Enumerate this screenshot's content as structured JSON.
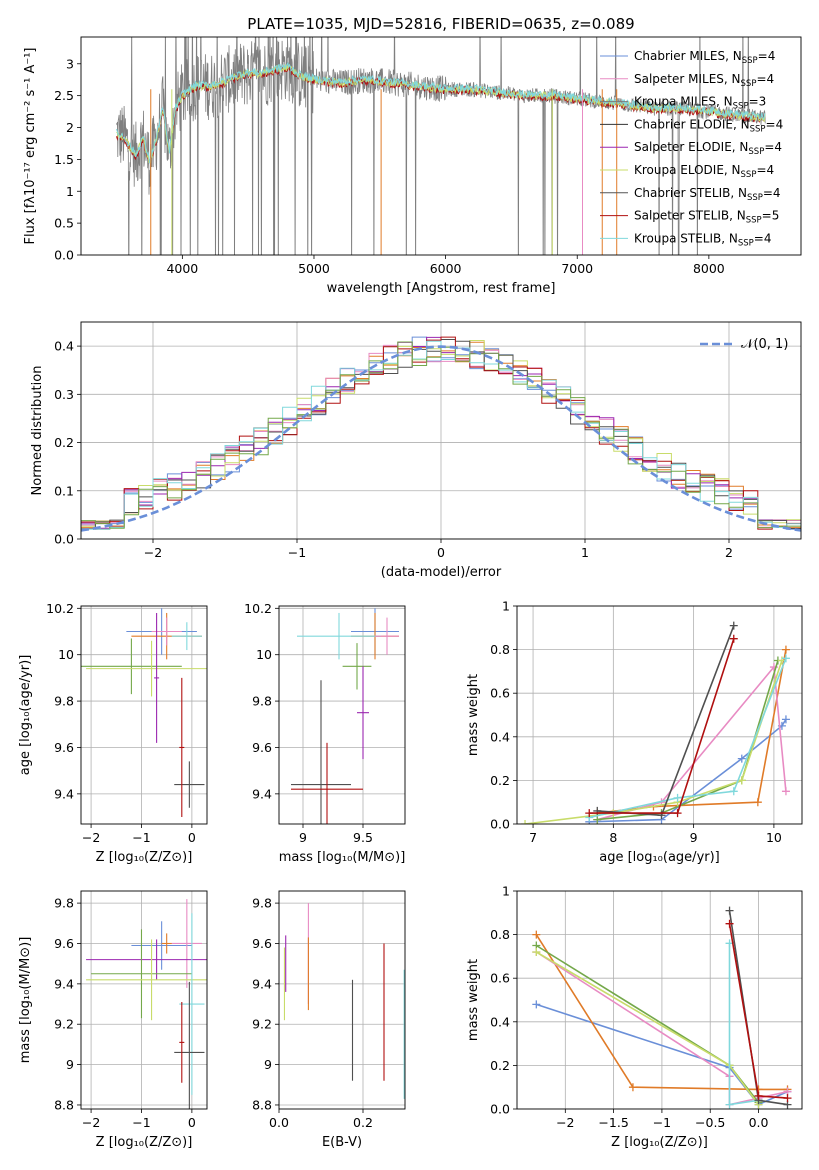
{
  "figure_title": "PLATE=1035, MJD=52816, FIBERID=0635, z=0.089",
  "model_colors": [
    "#6a8fd8",
    "#e88bc3",
    "#7a7a7a",
    "#333333",
    "#9b27b0",
    "#c8dc6a",
    "#555555",
    "#b01010",
    "#80d8dc"
  ],
  "series_colors": {
    "blue": "#6a8fd8",
    "pink": "#e88bc3",
    "gray": "#7f7f7f",
    "dark": "#505050",
    "orange": "#e07b28",
    "green": "#74a84a",
    "olive": "#c8dc6a",
    "red": "#b01010",
    "cyan": "#80d8dc",
    "purple": "#9b27b0",
    "gaussian": "#6a8fd8"
  },
  "chart_data": [
    {
      "id": "spectrum",
      "type": "line",
      "xlabel": "wavelength [Angstrom, rest frame]",
      "ylabel": "Flux [fλ10⁻¹⁷ erg cm⁻² s⁻¹ A⁻¹]",
      "xlim": [
        3230,
        8700
      ],
      "ylim": [
        0,
        3.42
      ],
      "xticks": [
        4000,
        5000,
        6000,
        7000,
        8000
      ],
      "yticks": [
        0.0,
        0.5,
        1.0,
        1.5,
        2.0,
        2.5,
        3.0
      ],
      "continuum": {
        "x": [
          3500,
          3550,
          3600,
          3650,
          3700,
          3750,
          3800,
          3850,
          3900,
          3950,
          4000,
          4100,
          4200,
          4300,
          4400,
          4500,
          4600,
          4700,
          4800,
          4900,
          5000,
          5200,
          5400,
          5600,
          5800,
          6000,
          6200,
          6400,
          6600,
          6800,
          7000,
          7200,
          7400,
          7600,
          7800,
          8000,
          8200,
          8400
        ],
        "y": [
          1.9,
          1.85,
          1.7,
          1.55,
          1.85,
          1.45,
          1.8,
          2.3,
          1.6,
          2.3,
          2.5,
          2.65,
          2.65,
          2.7,
          2.8,
          2.85,
          2.85,
          2.9,
          2.95,
          2.8,
          2.75,
          2.7,
          2.75,
          2.7,
          2.65,
          2.6,
          2.6,
          2.55,
          2.5,
          2.5,
          2.45,
          2.4,
          2.35,
          2.3,
          2.3,
          2.25,
          2.2,
          2.15
        ]
      },
      "legend": [
        {
          "label": "Chabrier MILES, N",
          "sub": "SSP",
          "tail": "=4"
        },
        {
          "label": "Salpeter MILES, N",
          "sub": "SSP",
          "tail": "=4"
        },
        {
          "label": "Kroupa MILES, N",
          "sub": "SSP",
          "tail": "=3"
        },
        {
          "label": "Chabrier ELODIE, N",
          "sub": "SSP",
          "tail": "=4"
        },
        {
          "label": "Salpeter ELODIE, N",
          "sub": "SSP",
          "tail": "=4"
        },
        {
          "label": "Kroupa ELODIE, N",
          "sub": "SSP",
          "tail": "=4"
        },
        {
          "label": "Chabrier STELIB, N",
          "sub": "SSP",
          "tail": "=4"
        },
        {
          "label": "Salpeter STELIB, N",
          "sub": "SSP",
          "tail": "=5"
        },
        {
          "label": "Kroupa STELIB, N",
          "sub": "SSP",
          "tail": "=4"
        }
      ]
    },
    {
      "id": "residuals",
      "type": "line",
      "xlabel": "(data-model)/error",
      "ylabel": "Normed distribution",
      "xlim": [
        -2.5,
        2.5
      ],
      "ylim": [
        0,
        0.45
      ],
      "xticks": [
        -2,
        -1,
        0,
        1,
        2
      ],
      "yticks": [
        0.0,
        0.1,
        0.2,
        0.3,
        0.4
      ],
      "legend": "𝒩(0, 1)",
      "bin_width": 0.1
    },
    {
      "id": "age_vs_Z",
      "type": "scatter",
      "xlabel": "Z [log₁₀(Z/Z⊙)]",
      "ylabel": "age  [log₁₀(age/yr)]",
      "xlim": [
        -2.2,
        0.3
      ],
      "ylim": [
        9.27,
        10.21
      ],
      "xticks": [
        -2,
        -1,
        0
      ],
      "yticks": [
        9.4,
        9.6,
        9.8,
        10.0,
        10.2
      ],
      "errorbars": [
        {
          "color": "blue",
          "x": -0.6,
          "y": 10.1,
          "x_err": 0.7,
          "y_err": 0.1
        },
        {
          "color": "orange",
          "x": -0.5,
          "y": 10.08,
          "x_err": 0.7,
          "y_err": 0.1
        },
        {
          "color": "pink",
          "x": -0.5,
          "y": 10.1,
          "x_err": 0.3,
          "y_err": 0.06
        },
        {
          "color": "cyan",
          "x": -0.1,
          "y": 10.08,
          "x_err": 0.3,
          "y_err": 0.06
        },
        {
          "color": "green",
          "x": -1.2,
          "y": 9.95,
          "x_err": 1.0,
          "y_err": 0.12
        },
        {
          "color": "olive",
          "x": -0.8,
          "y": 9.94,
          "x_err": 1.3,
          "y_err": 0.12
        },
        {
          "color": "purple",
          "x": -0.7,
          "y": 9.9,
          "x_err": 0.05,
          "y_err": 0.28
        },
        {
          "color": "dark",
          "x": -0.05,
          "y": 9.44,
          "x_err": 0.3,
          "y_err": 0.1
        },
        {
          "color": "red",
          "x": -0.2,
          "y": 9.6,
          "x_err": 0.05,
          "y_err": 0.3
        }
      ]
    },
    {
      "id": "age_vs_mass",
      "type": "scatter",
      "xlabel": "mass [log₁₀(M/M⊙)]",
      "ylabel": "",
      "xlim": [
        8.8,
        9.85
      ],
      "ylim": [
        9.27,
        10.21
      ],
      "xticks": [
        9.0,
        9.5
      ],
      "yticks": [
        9.4,
        9.6,
        9.8,
        10.0,
        10.2
      ],
      "errorbars": [
        {
          "color": "blue",
          "x": 9.6,
          "y": 10.1,
          "x_err": 0.2,
          "y_err": 0.1
        },
        {
          "color": "orange",
          "x": 9.6,
          "y": 10.08,
          "x_err": 0.2,
          "y_err": 0.1
        },
        {
          "color": "cyan",
          "x": 9.3,
          "y": 10.08,
          "x_err": 0.35,
          "y_err": 0.1
        },
        {
          "color": "pink",
          "x": 9.7,
          "y": 10.08,
          "x_err": 0.1,
          "y_err": 0.08
        },
        {
          "color": "green",
          "x": 9.45,
          "y": 9.95,
          "x_err": 0.12,
          "y_err": 0.1
        },
        {
          "color": "purple",
          "x": 9.5,
          "y": 9.75,
          "x_err": 0.05,
          "y_err": 0.2
        },
        {
          "color": "dark",
          "x": 9.15,
          "y": 9.44,
          "x_err": 0.25,
          "y_err": 0.45
        },
        {
          "color": "red",
          "x": 9.2,
          "y": 9.42,
          "x_err": 0.3,
          "y_err": 0.2
        }
      ]
    },
    {
      "id": "mass_weight_vs_age",
      "type": "line",
      "xlabel": "age  [log₁₀(age/yr)]",
      "ylabel": "mass weight",
      "xlim": [
        6.8,
        10.35
      ],
      "ylim": [
        0,
        1.0
      ],
      "xticks": [
        7,
        8,
        9,
        10
      ],
      "yticks": [
        0.0,
        0.2,
        0.4,
        0.6,
        0.8,
        1.0
      ],
      "series": [
        {
          "color": "blue",
          "x": [
            7.7,
            8.6,
            9.6,
            10.1,
            10.15
          ],
          "y": [
            0.01,
            0.02,
            0.3,
            0.45,
            0.48
          ]
        },
        {
          "color": "orange",
          "x": [
            7.8,
            8.5,
            9.8,
            10.15
          ],
          "y": [
            0.05,
            0.08,
            0.1,
            0.8
          ]
        },
        {
          "color": "pink",
          "x": [
            7.8,
            8.6,
            10.0,
            10.15
          ],
          "y": [
            0.02,
            0.1,
            0.72,
            0.15
          ]
        },
        {
          "color": "green",
          "x": [
            7.8,
            8.6,
            9.6,
            10.05
          ],
          "y": [
            0.02,
            0.05,
            0.2,
            0.75
          ]
        },
        {
          "color": "olive",
          "x": [
            6.9,
            8.0,
            8.8,
            9.6,
            10.1
          ],
          "y": [
            0.0,
            0.05,
            0.1,
            0.2,
            0.75
          ]
        },
        {
          "color": "cyan",
          "x": [
            7.7,
            8.8,
            9.5,
            10.15
          ],
          "y": [
            0.03,
            0.12,
            0.15,
            0.76
          ]
        },
        {
          "color": "dark",
          "x": [
            7.8,
            8.6,
            9.5
          ],
          "y": [
            0.06,
            0.04,
            0.91
          ]
        },
        {
          "color": "red",
          "x": [
            7.7,
            8.8,
            9.5
          ],
          "y": [
            0.05,
            0.05,
            0.85
          ]
        }
      ]
    },
    {
      "id": "mass_vs_Z",
      "type": "scatter",
      "xlabel": "Z [log₁₀(Z/Z⊙)]",
      "ylabel": "mass [log₁₀(M/M⊙)]",
      "xlim": [
        -2.2,
        0.3
      ],
      "ylim": [
        8.78,
        9.86
      ],
      "xticks": [
        -2,
        -1,
        0
      ],
      "yticks": [
        8.8,
        9.0,
        9.2,
        9.4,
        9.6,
        9.8
      ],
      "errorbars": [
        {
          "color": "blue",
          "x": -0.6,
          "y": 9.59,
          "x_err": 0.6,
          "y_err": 0.12
        },
        {
          "color": "pink",
          "x": -0.1,
          "y": 9.6,
          "x_err": 0.3,
          "y_err": 0.22
        },
        {
          "color": "orange",
          "x": -0.5,
          "y": 9.6,
          "x_err": 0.1,
          "y_err": 0.05
        },
        {
          "color": "purple",
          "x": -0.7,
          "y": 9.52,
          "x_err": 1.4,
          "y_err": 0.1
        },
        {
          "color": "green",
          "x": -1.0,
          "y": 9.45,
          "x_err": 1.0,
          "y_err": 0.22
        },
        {
          "color": "olive",
          "x": -0.8,
          "y": 9.42,
          "x_err": 1.3,
          "y_err": 0.2
        },
        {
          "color": "cyan",
          "x": 0.0,
          "y": 9.3,
          "x_err": 0.25,
          "y_err": 0.45
        },
        {
          "color": "dark",
          "x": -0.05,
          "y": 9.06,
          "x_err": 0.3,
          "y_err": 0.35
        },
        {
          "color": "red",
          "x": -0.2,
          "y": 9.11,
          "x_err": 0.05,
          "y_err": 0.2
        }
      ]
    },
    {
      "id": "mass_vs_ebv",
      "type": "scatter",
      "xlabel": "E(B-V)",
      "ylabel": "",
      "xlim": [
        0.0,
        0.3
      ],
      "ylim": [
        8.78,
        9.86
      ],
      "xticks": [
        0.0,
        0.2
      ],
      "yticks": [
        8.8,
        9.0,
        9.2,
        9.4,
        9.6,
        9.8
      ],
      "errorbars": [
        {
          "color": "purple",
          "x": 0.016,
          "y": 9.5,
          "y_err": 0.14
        },
        {
          "color": "olive",
          "x": 0.013,
          "y": 9.4,
          "y_err": 0.18
        },
        {
          "color": "pink",
          "x": 0.07,
          "y": 9.55,
          "y_err": 0.25
        },
        {
          "color": "orange",
          "x": 0.07,
          "y": 9.45,
          "y_err": 0.18
        },
        {
          "color": "dark",
          "x": 0.175,
          "y": 9.17,
          "y_err": 0.25
        },
        {
          "color": "red",
          "x": 0.25,
          "y": 9.26,
          "y_err": 0.34
        },
        {
          "color": "cyan",
          "x": 0.298,
          "y": 9.15,
          "y_err": 0.32
        }
      ]
    },
    {
      "id": "mass_weight_vs_Z",
      "type": "line",
      "xlabel": "Z [log₁₀(Z/Z⊙)]",
      "ylabel": "mass weight",
      "xlim": [
        -2.5,
        0.45
      ],
      "ylim": [
        0,
        1.0
      ],
      "xticks": [
        -2.0,
        -1.5,
        -1.0,
        -0.5,
        0.0
      ],
      "yticks": [
        0.0,
        0.2,
        0.4,
        0.6,
        0.8,
        1.0
      ],
      "series": [
        {
          "color": "blue",
          "x": [
            -2.3,
            -0.3,
            0.0,
            0.3
          ],
          "y": [
            0.48,
            0.19,
            0.02,
            0.08
          ]
        },
        {
          "color": "orange",
          "x": [
            -2.3,
            -1.3,
            0.0,
            0.3
          ],
          "y": [
            0.8,
            0.1,
            0.09,
            0.09
          ]
        },
        {
          "color": "pink",
          "x": [
            -2.3,
            -0.3,
            -0.3,
            0.0,
            0.3
          ],
          "y": [
            0.72,
            0.15,
            0.02,
            0.05,
            0.08
          ]
        },
        {
          "color": "green",
          "x": [
            -2.3,
            -0.3,
            0.0
          ],
          "y": [
            0.75,
            0.2,
            0.03
          ]
        },
        {
          "color": "olive",
          "x": [
            -2.3,
            -0.3,
            0.0
          ],
          "y": [
            0.72,
            0.2,
            0.02
          ]
        },
        {
          "color": "cyan",
          "x": [
            -0.3,
            -0.3,
            0.0
          ],
          "y": [
            0.76,
            0.02,
            0.04
          ]
        },
        {
          "color": "dark",
          "x": [
            -0.3,
            0.0,
            0.3
          ],
          "y": [
            0.91,
            0.04,
            0.02
          ]
        },
        {
          "color": "red",
          "x": [
            -0.3,
            0.0,
            0.3
          ],
          "y": [
            0.85,
            0.06,
            0.05
          ]
        }
      ]
    }
  ]
}
